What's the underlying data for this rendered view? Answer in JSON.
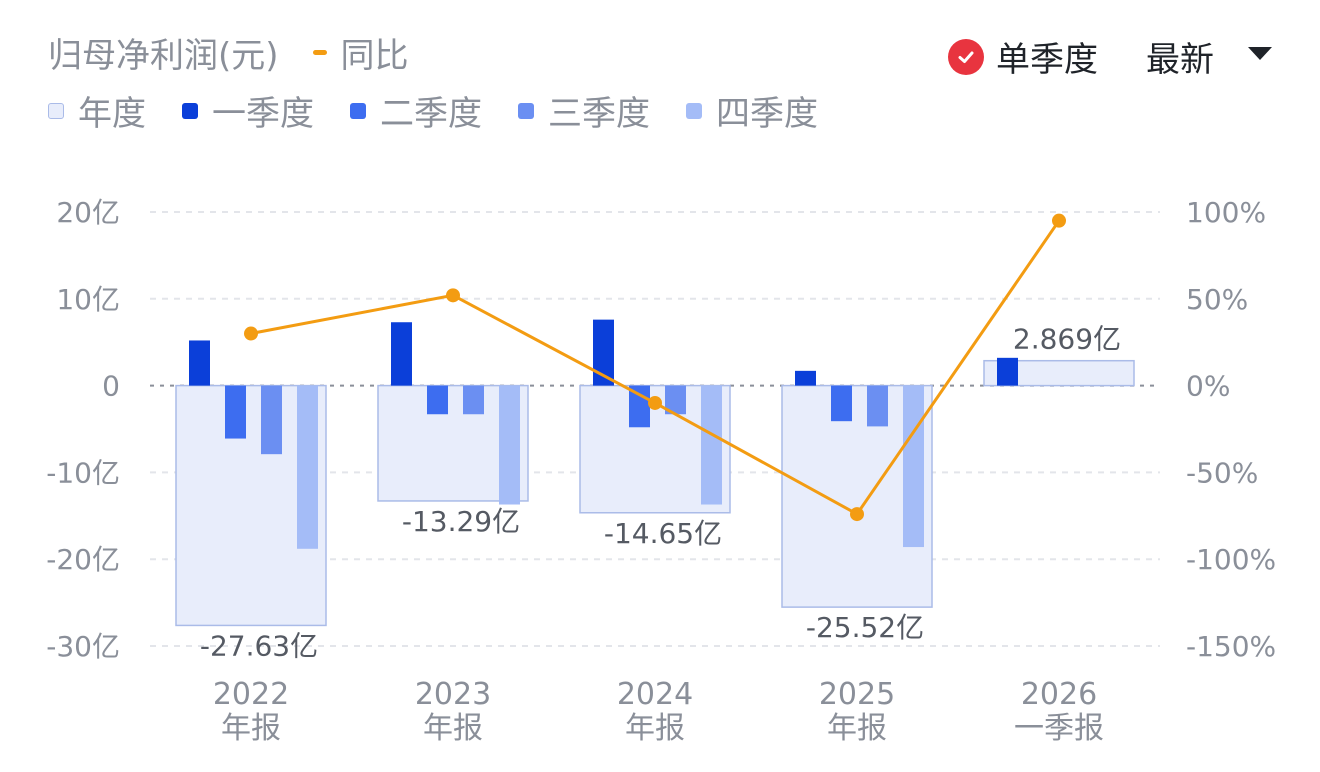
{
  "header": {
    "title": "归母净利润(元)",
    "yoy_label": "同比",
    "toggle_label": "单季度",
    "select_value": "最新"
  },
  "legend": [
    {
      "label": "年度",
      "color": "#e8edfb",
      "border": "#aabbe8"
    },
    {
      "label": "一季度",
      "color": "#0b3fd9"
    },
    {
      "label": "二季度",
      "color": "#3d6df0"
    },
    {
      "label": "三季度",
      "color": "#6b8ff2"
    },
    {
      "label": "四季度",
      "color": "#a4bcf7"
    }
  ],
  "colors": {
    "line": "#f39c12",
    "check": "#e8343f",
    "grid": "#e3e5ea",
    "zero": "#8a8f99",
    "axis_text": "#8a8f99"
  },
  "chart_data": {
    "type": "bar",
    "categories": [
      [
        "2022",
        "年报"
      ],
      [
        "2023",
        "年报"
      ],
      [
        "2024",
        "年报"
      ],
      [
        "2025",
        "年报"
      ],
      [
        "2026",
        "一季报"
      ]
    ],
    "annual": [
      -27.63,
      -13.29,
      -14.65,
      -25.52,
      2.869
    ],
    "annual_labels": [
      "-27.63亿",
      "-13.29亿",
      "-14.65亿",
      "-25.52亿",
      "2.869亿"
    ],
    "quarters": [
      [
        5.2,
        -6.1,
        -7.9,
        -18.8
      ],
      [
        7.3,
        -3.3,
        -3.3,
        -13.7
      ],
      [
        7.6,
        -4.8,
        -3.3,
        -13.7
      ],
      [
        1.7,
        -4.1,
        -4.7,
        -18.6
      ],
      [
        3.2,
        null,
        null,
        null
      ]
    ],
    "yoy": [
      30,
      52,
      -10,
      -74,
      95
    ],
    "y_left": {
      "ticks": [
        20,
        10,
        0,
        -10,
        -20,
        -30
      ],
      "labels": [
        "20亿",
        "10亿",
        "0",
        "-10亿",
        "-20亿",
        "-30亿"
      ],
      "range": [
        -30,
        20
      ]
    },
    "y_right": {
      "ticks": [
        100,
        50,
        0,
        -50,
        -100,
        -150
      ],
      "labels": [
        "100%",
        "50%",
        "0%",
        "-50%",
        "-100%",
        "-150%"
      ],
      "range": [
        -150,
        100
      ]
    },
    "grid": true
  }
}
